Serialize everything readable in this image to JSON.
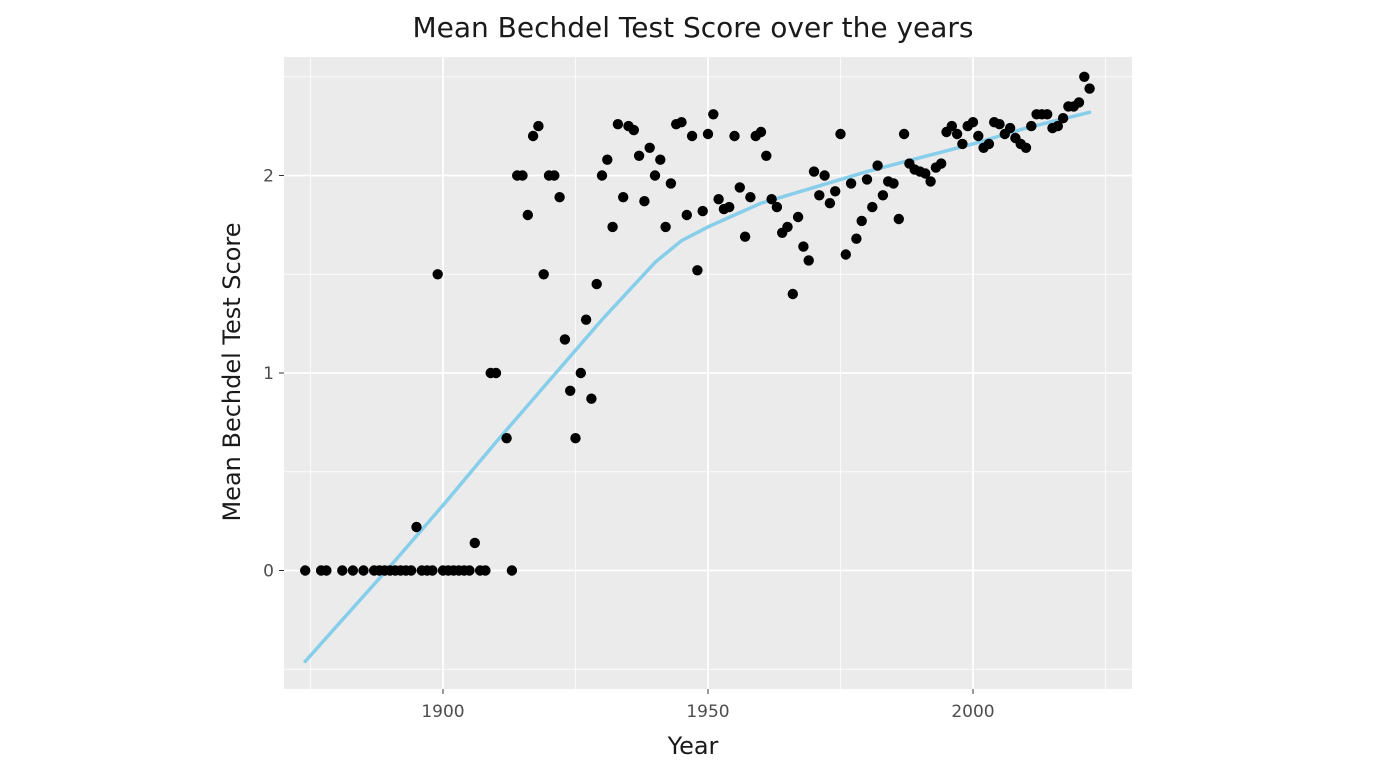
{
  "chart_data": {
    "type": "scatter",
    "title": "Mean Bechdel Test Score over the years",
    "xlabel": "Year",
    "ylabel": "Mean Bechdel Test Score",
    "xlim": [
      1870,
      2030
    ],
    "ylim": [
      -0.6,
      2.6
    ],
    "x_ticks": [
      1900,
      1950,
      2000
    ],
    "x_tick_labels": [
      "1900",
      "1950",
      "2000"
    ],
    "y_ticks": [
      0,
      1,
      2
    ],
    "y_tick_labels": [
      "0",
      "1",
      "2"
    ],
    "grid": true,
    "legend": "none",
    "colors": {
      "panel": "#ebebeb",
      "grid": "#ffffff",
      "points": "#000000",
      "smooth_line": "#87ceeb"
    },
    "series": [
      {
        "kind": "points",
        "points": [
          [
            1874,
            0
          ],
          [
            1877,
            0
          ],
          [
            1878,
            0
          ],
          [
            1881,
            0
          ],
          [
            1883,
            0
          ],
          [
            1885,
            0
          ],
          [
            1887,
            0
          ],
          [
            1888,
            0
          ],
          [
            1889,
            0
          ],
          [
            1890,
            0
          ],
          [
            1891,
            0
          ],
          [
            1892,
            0
          ],
          [
            1893,
            0
          ],
          [
            1894,
            0
          ],
          [
            1895,
            0.22
          ],
          [
            1896,
            0
          ],
          [
            1897,
            0
          ],
          [
            1898,
            0
          ],
          [
            1899,
            1.5
          ],
          [
            1900,
            0
          ],
          [
            1901,
            0
          ],
          [
            1902,
            0
          ],
          [
            1903,
            0
          ],
          [
            1904,
            0
          ],
          [
            1905,
            0
          ],
          [
            1906,
            0.14
          ],
          [
            1907,
            0
          ],
          [
            1908,
            0
          ],
          [
            1909,
            1.0
          ],
          [
            1910,
            1.0
          ],
          [
            1912,
            0.67
          ],
          [
            1913,
            0
          ],
          [
            1914,
            2.0
          ],
          [
            1915,
            2.0
          ],
          [
            1916,
            1.8
          ],
          [
            1917,
            2.2
          ],
          [
            1918,
            2.25
          ],
          [
            1919,
            1.5
          ],
          [
            1920,
            2.0
          ],
          [
            1921,
            2.0
          ],
          [
            1922,
            1.89
          ],
          [
            1923,
            1.17
          ],
          [
            1924,
            0.91
          ],
          [
            1925,
            0.67
          ],
          [
            1926,
            1.0
          ],
          [
            1927,
            1.27
          ],
          [
            1928,
            0.87
          ],
          [
            1929,
            1.45
          ],
          [
            1930,
            2.0
          ],
          [
            1931,
            2.08
          ],
          [
            1932,
            1.74
          ],
          [
            1933,
            2.26
          ],
          [
            1934,
            1.89
          ],
          [
            1935,
            2.25
          ],
          [
            1936,
            2.23
          ],
          [
            1937,
            2.1
          ],
          [
            1938,
            1.87
          ],
          [
            1939,
            2.14
          ],
          [
            1940,
            2.0
          ],
          [
            1941,
            2.08
          ],
          [
            1942,
            1.74
          ],
          [
            1943,
            1.96
          ],
          [
            1944,
            2.26
          ],
          [
            1945,
            2.27
          ],
          [
            1946,
            1.8
          ],
          [
            1947,
            2.2
          ],
          [
            1948,
            1.52
          ],
          [
            1949,
            1.82
          ],
          [
            1950,
            2.21
          ],
          [
            1951,
            2.31
          ],
          [
            1952,
            1.88
          ],
          [
            1953,
            1.83
          ],
          [
            1954,
            1.84
          ],
          [
            1955,
            2.2
          ],
          [
            1956,
            1.94
          ],
          [
            1957,
            1.69
          ],
          [
            1958,
            1.89
          ],
          [
            1959,
            2.2
          ],
          [
            1960,
            2.22
          ],
          [
            1961,
            2.1
          ],
          [
            1962,
            1.88
          ],
          [
            1963,
            1.84
          ],
          [
            1964,
            1.71
          ],
          [
            1965,
            1.74
          ],
          [
            1966,
            1.4
          ],
          [
            1967,
            1.79
          ],
          [
            1968,
            1.64
          ],
          [
            1969,
            1.57
          ],
          [
            1970,
            2.02
          ],
          [
            1971,
            1.9
          ],
          [
            1972,
            2.0
          ],
          [
            1973,
            1.86
          ],
          [
            1974,
            1.92
          ],
          [
            1975,
            2.21
          ],
          [
            1976,
            1.6
          ],
          [
            1977,
            1.96
          ],
          [
            1978,
            1.68
          ],
          [
            1979,
            1.77
          ],
          [
            1980,
            1.98
          ],
          [
            1981,
            1.84
          ],
          [
            1982,
            2.05
          ],
          [
            1983,
            1.9
          ],
          [
            1984,
            1.97
          ],
          [
            1985,
            1.96
          ],
          [
            1986,
            1.78
          ],
          [
            1987,
            2.21
          ],
          [
            1988,
            2.06
          ],
          [
            1989,
            2.03
          ],
          [
            1990,
            2.02
          ],
          [
            1991,
            2.01
          ],
          [
            1992,
            1.97
          ],
          [
            1993,
            2.04
          ],
          [
            1994,
            2.06
          ],
          [
            1995,
            2.22
          ],
          [
            1996,
            2.25
          ],
          [
            1997,
            2.21
          ],
          [
            1998,
            2.16
          ],
          [
            1999,
            2.25
          ],
          [
            2000,
            2.27
          ],
          [
            2001,
            2.2
          ],
          [
            2002,
            2.14
          ],
          [
            2003,
            2.16
          ],
          [
            2004,
            2.27
          ],
          [
            2005,
            2.26
          ],
          [
            2006,
            2.21
          ],
          [
            2007,
            2.24
          ],
          [
            2008,
            2.19
          ],
          [
            2009,
            2.16
          ],
          [
            2010,
            2.14
          ],
          [
            2011,
            2.25
          ],
          [
            2012,
            2.31
          ],
          [
            2013,
            2.31
          ],
          [
            2014,
            2.31
          ],
          [
            2015,
            2.24
          ],
          [
            2016,
            2.25
          ],
          [
            2017,
            2.29
          ],
          [
            2018,
            2.35
          ],
          [
            2019,
            2.35
          ],
          [
            2020,
            2.37
          ],
          [
            2021,
            2.5
          ],
          [
            2022,
            2.44
          ]
        ]
      },
      {
        "kind": "smooth_line",
        "points": [
          [
            1874,
            -0.46
          ],
          [
            1880,
            -0.28
          ],
          [
            1890,
            0.02
          ],
          [
            1900,
            0.33
          ],
          [
            1910,
            0.65
          ],
          [
            1920,
            0.96
          ],
          [
            1930,
            1.27
          ],
          [
            1940,
            1.56
          ],
          [
            1945,
            1.67
          ],
          [
            1950,
            1.74
          ],
          [
            1955,
            1.8
          ],
          [
            1960,
            1.86
          ],
          [
            1970,
            1.94
          ],
          [
            1980,
            2.02
          ],
          [
            1990,
            2.09
          ],
          [
            2000,
            2.16
          ],
          [
            2010,
            2.24
          ],
          [
            2022,
            2.32
          ]
        ]
      }
    ]
  }
}
